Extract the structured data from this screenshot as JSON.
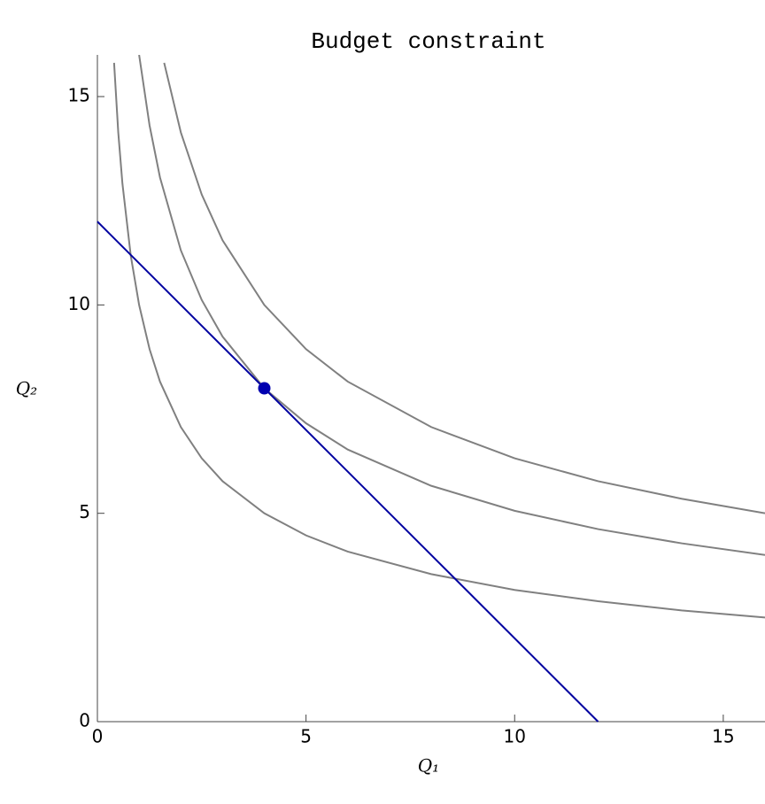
{
  "chart_data": {
    "type": "line",
    "title": "Budget constraint",
    "x_label": "Q₁",
    "y_label": "Q₂",
    "xlim": [
      0,
      16
    ],
    "ylim": [
      0,
      16
    ],
    "xticks": [
      0,
      5,
      10,
      15
    ],
    "yticks": [
      0,
      5,
      10,
      15
    ],
    "series": [
      {
        "color": "#808080",
        "x": [
          0.4,
          0.5,
          0.6,
          0.8,
          1,
          1.25,
          1.5,
          2,
          2.5,
          3,
          4,
          5,
          6,
          8,
          10,
          12,
          14,
          16
        ],
        "values": [
          15.81,
          14.14,
          12.91,
          11.18,
          10,
          8.94,
          8.16,
          7.07,
          6.32,
          5.77,
          5,
          4.47,
          4.08,
          3.54,
          3.16,
          2.89,
          2.67,
          2.5
        ]
      },
      {
        "color": "#808080",
        "x": [
          1,
          1.25,
          1.5,
          2,
          2.5,
          3,
          4,
          5,
          6,
          8,
          10,
          12,
          14,
          16
        ],
        "values": [
          16,
          14.31,
          13.06,
          11.31,
          10.12,
          9.24,
          8,
          7.16,
          6.53,
          5.66,
          5.06,
          4.62,
          4.28,
          4
        ]
      },
      {
        "color": "#808080",
        "x": [
          1.6,
          2,
          2.5,
          3,
          4,
          5,
          6,
          8,
          10,
          12,
          14,
          16
        ],
        "values": [
          15.81,
          14.14,
          12.65,
          11.55,
          10,
          8.94,
          8.16,
          7.07,
          6.32,
          5.77,
          5.35,
          5
        ]
      },
      {
        "color": "#0000a0",
        "x": [
          0,
          12
        ],
        "values": [
          12,
          0
        ]
      }
    ],
    "points": {
      "color": "#0000b0",
      "x": [
        4
      ],
      "values": [
        8
      ]
    }
  }
}
